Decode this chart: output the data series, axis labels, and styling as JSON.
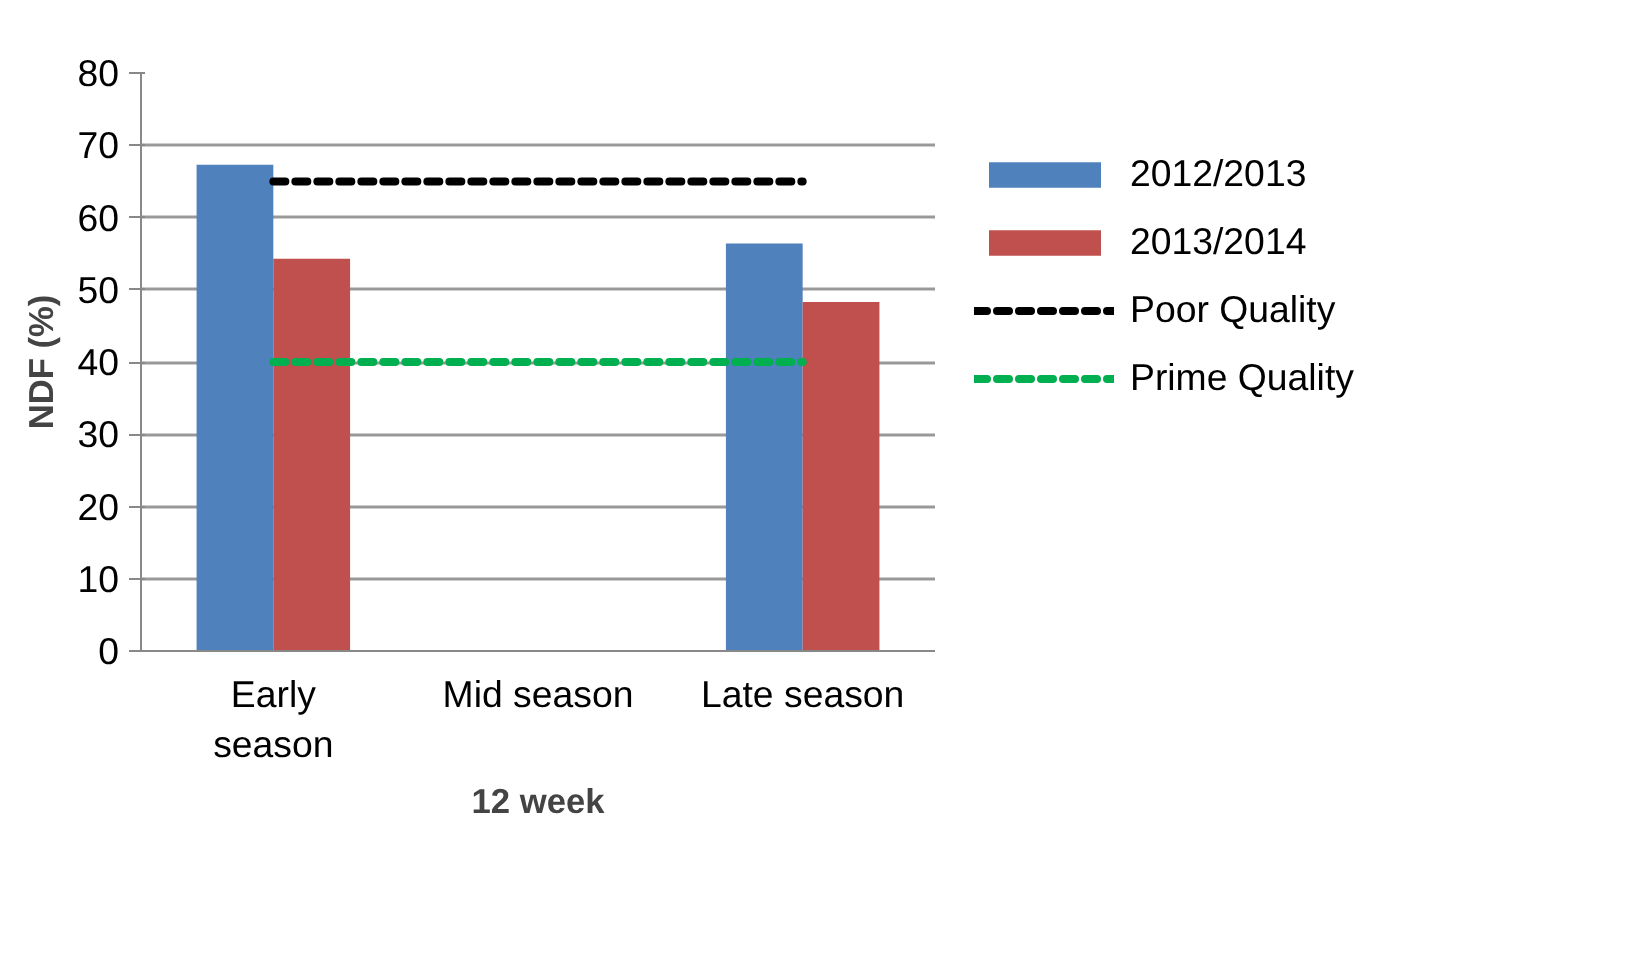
{
  "chart_data": {
    "type": "bar",
    "xlabel": "12 week",
    "ylabel": "NDF (%)",
    "categories": [
      "Early\nseason",
      "Mid season",
      "Late season"
    ],
    "series": [
      {
        "name": "2012/2013",
        "color": "#4f81bd",
        "values": [
          67.3,
          null,
          56.4
        ]
      },
      {
        "name": "2013/2014",
        "color": "#c0504d",
        "values": [
          54.3,
          null,
          48.3
        ]
      },
      {
        "name": "Poor Quality",
        "type": "line",
        "line_style": "dashed",
        "color": "#000000",
        "values": [
          65,
          65,
          65
        ]
      },
      {
        "name": "Prime Quality",
        "type": "line",
        "line_style": "dashed",
        "color": "#00b050",
        "values": [
          40,
          40,
          40
        ]
      }
    ],
    "ylim": [
      0,
      80
    ],
    "yticks": [
      0,
      10,
      20,
      30,
      40,
      50,
      60,
      70,
      80
    ],
    "grid": "y",
    "legend": "right"
  }
}
